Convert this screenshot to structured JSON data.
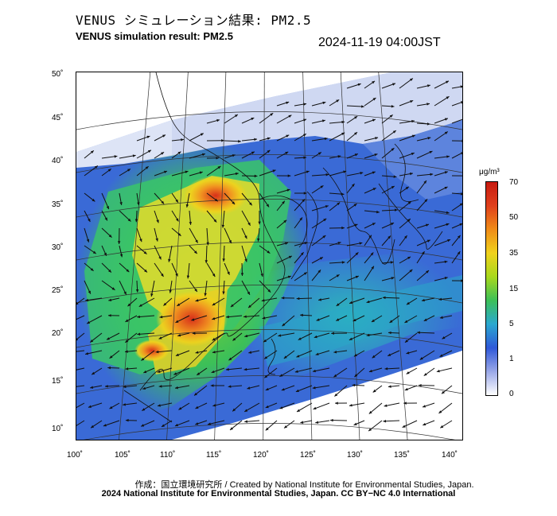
{
  "header": {
    "title_jp": "VENUS シミュレーション結果: PM2.5",
    "title_en": "VENUS simulation result: PM2.5",
    "timestamp": "2024-11-19 04:00JST"
  },
  "map": {
    "lat_labels": [
      "50˚",
      "45˚",
      "40˚",
      "35˚",
      "30˚",
      "25˚",
      "20˚",
      "15˚",
      "10˚"
    ],
    "lon_labels": [
      "100˚",
      "105˚",
      "110˚",
      "115˚",
      "120˚",
      "125˚",
      "130˚",
      "135˚",
      "140˚"
    ],
    "concentration_colors": {
      "very_low": "#dde4f6",
      "low": "#3d6fd9",
      "mid": "#39c46a",
      "high": "#f0d21c",
      "very_high": "#e0401c"
    },
    "icons": [
      "wind-arrow-icon",
      "coastline-icon",
      "graticule-icon"
    ]
  },
  "colorbar": {
    "unit": "μg/m³",
    "ticks": [
      "70",
      "50",
      "35",
      "15",
      "5",
      "1",
      "0"
    ],
    "gradient_colors": [
      "#ffffff",
      "#9aa8e8",
      "#2f58d8",
      "#2aa8d0",
      "#3cc058",
      "#a8d81c",
      "#f0d21c",
      "#f08c18",
      "#e0401c",
      "#c81a10"
    ]
  },
  "credits": {
    "line1": "作成：国立環境研究所 / Created by National Institute for Environmental Studies, Japan.",
    "line2": "2024 National Institute for Environmental Studies, Japan. CC BY−NC 4.0 International"
  }
}
